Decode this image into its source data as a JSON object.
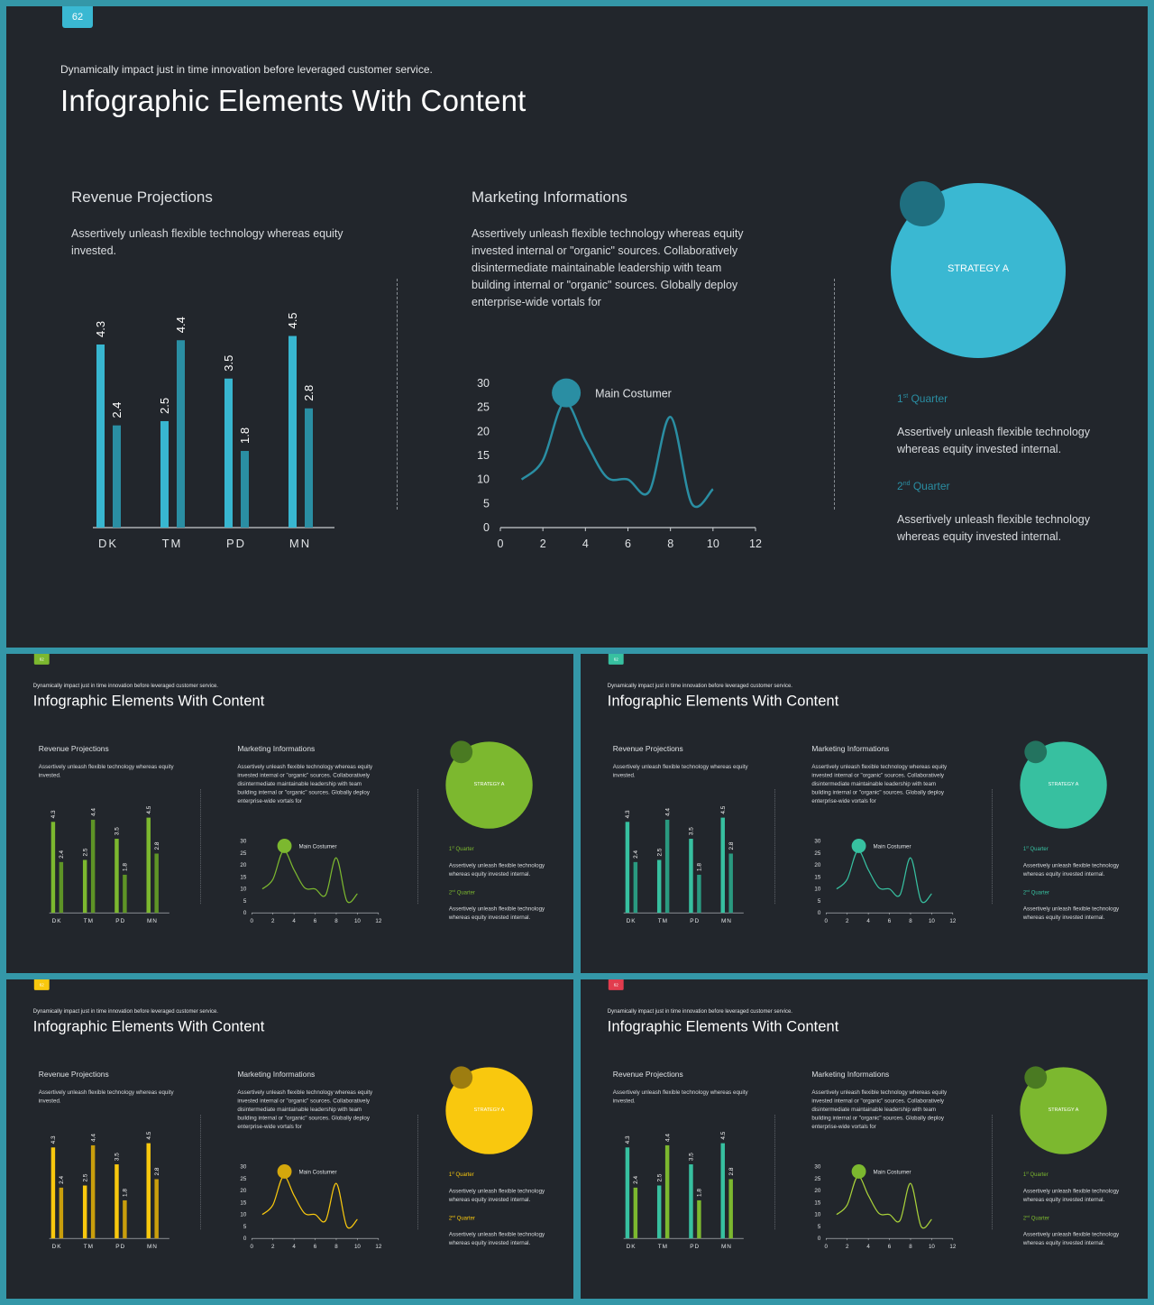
{
  "page_number": "62",
  "subtitle": "Dynamically impact just in time innovation  before leveraged customer service.",
  "title": "Infographic Elements With Content",
  "revenue": {
    "title": "Revenue Projections",
    "text": "Assertively unleash flexible technology whereas equity invested."
  },
  "marketing": {
    "title": "Marketing  Informations",
    "text": "Assertively unleash flexible technology whereas equity invested internal or \"organic\" sources. Collaboratively disintermediate maintainable leadership with team building internal or \"organic\" sources. Globally deploy enterprise-wide vortals for",
    "marker_label": "Main Costumer"
  },
  "strategy": {
    "label": "STRATEGY A",
    "quarter1_prefix": "1",
    "quarter1_sup": "st",
    "quarter1_suffix": " Quarter",
    "quarter1_text": "Assertively unleash flexible technology whereas equity invested internal.",
    "quarter2_prefix": "2",
    "quarter2_sup": "nd",
    "quarter2_suffix": "  Quarter",
    "quarter2_text": "Assertively unleash flexible technology whereas equity invested internal."
  },
  "chart_data": [
    {
      "type": "bar",
      "categories": [
        "DK",
        "TM",
        "PD",
        "MN"
      ],
      "series": [
        {
          "values": [
            4.3,
            2.5,
            3.5,
            4.5
          ]
        },
        {
          "values": [
            2.4,
            4.4,
            1.8,
            2.8
          ]
        }
      ],
      "bar_labels_pairs": [
        [
          "4.3",
          "2.4"
        ],
        [
          "2.5",
          "4.4"
        ],
        [
          "3.5",
          "1.8"
        ],
        [
          "4.5",
          "2.8"
        ]
      ],
      "ylim": [
        0,
        5
      ]
    },
    {
      "type": "line",
      "x": [
        1,
        2,
        3,
        4,
        5,
        6,
        7,
        8,
        9,
        10
      ],
      "y": [
        10,
        14,
        26,
        18,
        10.5,
        10,
        7.5,
        23,
        5,
        8
      ],
      "highlight": {
        "x": 3.1,
        "y": 28
      },
      "xticks": [
        "0",
        "2",
        "4",
        "6",
        "8",
        "10",
        "12"
      ],
      "yticks": [
        "0",
        "5",
        "10",
        "15",
        "20",
        "25",
        "30"
      ],
      "xlim": [
        0,
        12
      ],
      "ylim": [
        0,
        30
      ]
    }
  ],
  "themes": {
    "main": {
      "badge": "#3ab8d2",
      "bar1": "#38b6d0",
      "bar2": "#2a8ea3",
      "line": "#2a8ea3",
      "dot": "#2a8ea3",
      "circle": "#3ab8d2",
      "circle_small": "#1f6f80",
      "quarter": "#2a8ea3"
    },
    "green": {
      "badge": "#7cb82f",
      "bar1": "#7cb82f",
      "bar2": "#5e9426",
      "line": "#7cb82f",
      "dot": "#7cb82f",
      "circle": "#7cb82f",
      "circle_small": "#4a7a22",
      "quarter": "#7cb82f"
    },
    "teal": {
      "badge": "#37c0a0",
      "bar1": "#37c0a0",
      "bar2": "#2a9a80",
      "line": "#37c0a0",
      "dot": "#37c0a0",
      "circle": "#37c0a0",
      "circle_small": "#23735f",
      "quarter": "#37c0a0"
    },
    "yellow": {
      "badge": "#f9c80e",
      "bar1": "#f9c80e",
      "bar2": "#c99e0c",
      "line": "#f9c80e",
      "dot": "#d4a70c",
      "circle": "#f9c80e",
      "circle_small": "#9d7d10",
      "quarter": "#f9c80e"
    },
    "lime": {
      "badge": "#e23c4e",
      "bar1": "#37c0a0",
      "bar2": "#7cb82f",
      "line": "#a8d13a",
      "dot": "#7cb82f",
      "circle": "#7cb82f",
      "circle_small": "#4a7a22",
      "quarter": "#7cb82f"
    }
  }
}
